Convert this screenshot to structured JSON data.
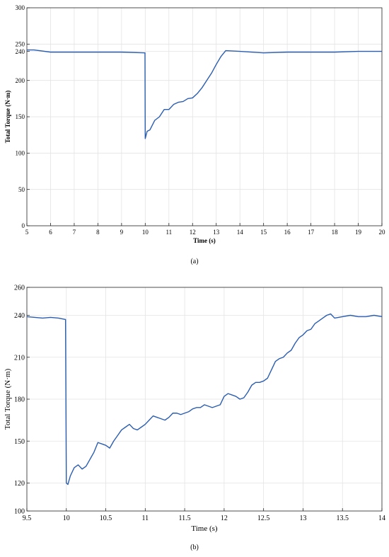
{
  "chart_data": [
    {
      "type": "line",
      "caption": "(a)",
      "xlabel": "Time (s)",
      "ylabel": "Total Torque (N·m)",
      "xlim": [
        5,
        20
      ],
      "ylim": [
        0,
        300
      ],
      "xticks": [
        5,
        6,
        7,
        8,
        9,
        10,
        11,
        12,
        13,
        14,
        15,
        16,
        17,
        18,
        19,
        20
      ],
      "yticks": [
        0,
        50,
        100,
        150,
        200,
        240,
        250,
        300
      ],
      "grid": true,
      "line_color": "#2a5db0",
      "series": [
        {
          "x": [
            5.0,
            5.3,
            6.0,
            7.0,
            8.0,
            9.0,
            9.99,
            10.0,
            10.08,
            10.2,
            10.4,
            10.6,
            10.8,
            11.0,
            11.2,
            11.4,
            11.6,
            11.8,
            12.0,
            12.2,
            12.4,
            12.6,
            12.8,
            13.0,
            13.2,
            13.4,
            14.0,
            15.0,
            16.0,
            17.0,
            18.0,
            19.0,
            20.0
          ],
          "y": [
            242,
            242,
            239,
            239,
            239,
            239,
            238,
            120,
            130,
            132,
            145,
            150,
            160,
            160,
            167,
            170,
            171,
            175,
            176,
            182,
            190,
            200,
            210,
            222,
            233,
            241,
            240,
            238,
            239,
            239,
            239,
            240,
            240
          ]
        }
      ]
    },
    {
      "type": "line",
      "caption": "(b)",
      "xlabel": "Time (s)",
      "ylabel": "Total Torque (N·m)",
      "xlim": [
        9.5,
        14
      ],
      "ylim": [
        100,
        260
      ],
      "xticks": [
        9.5,
        10,
        10.5,
        11,
        11.5,
        12,
        12.5,
        13,
        13.5,
        14
      ],
      "yticks": [
        100,
        120,
        150,
        180,
        210,
        240,
        260
      ],
      "grid": true,
      "line_color": "#2a5db0",
      "series": [
        {
          "x": [
            9.5,
            9.6,
            9.7,
            9.8,
            9.9,
            9.99,
            10.0,
            10.02,
            10.05,
            10.1,
            10.15,
            10.2,
            10.25,
            10.3,
            10.35,
            10.4,
            10.45,
            10.5,
            10.55,
            10.6,
            10.65,
            10.7,
            10.75,
            10.8,
            10.85,
            10.9,
            10.95,
            11.0,
            11.05,
            11.1,
            11.15,
            11.2,
            11.25,
            11.3,
            11.35,
            11.4,
            11.45,
            11.5,
            11.55,
            11.6,
            11.65,
            11.7,
            11.75,
            11.8,
            11.85,
            11.9,
            11.95,
            12.0,
            12.05,
            12.1,
            12.15,
            12.2,
            12.25,
            12.3,
            12.35,
            12.4,
            12.45,
            12.5,
            12.55,
            12.6,
            12.65,
            12.7,
            12.75,
            12.8,
            12.85,
            12.9,
            12.95,
            13.0,
            13.05,
            13.1,
            13.15,
            13.2,
            13.25,
            13.3,
            13.35,
            13.4,
            13.5,
            13.6,
            13.7,
            13.8,
            13.9,
            14.0
          ],
          "y": [
            239,
            238.5,
            238,
            238.5,
            238,
            237,
            120,
            119,
            125,
            131,
            133,
            130,
            132,
            137,
            142,
            149,
            148,
            147,
            145,
            150,
            154,
            158,
            160,
            162,
            159,
            158,
            160,
            162,
            165,
            168,
            167,
            166,
            165,
            167,
            170,
            170,
            169,
            170,
            171,
            173,
            174,
            174,
            176,
            175,
            174,
            175,
            176,
            182,
            184,
            183,
            182,
            180,
            181,
            185,
            190,
            192,
            192,
            193,
            195,
            201,
            207,
            209,
            210,
            213,
            215,
            220,
            224,
            226,
            229,
            230,
            234,
            236,
            238,
            240,
            241,
            238,
            239,
            240,
            239,
            239,
            240,
            239
          ]
        }
      ]
    }
  ]
}
